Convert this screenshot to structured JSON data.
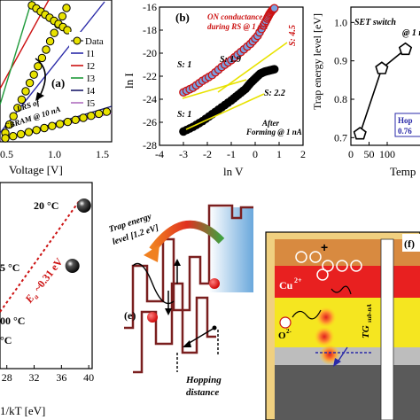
{
  "panel_a": {
    "label": "(a)",
    "xlabel": "Voltage [V]",
    "xticks": [
      "0.5",
      "1.0",
      "1.5"
    ],
    "legend": [
      "Data",
      "I1",
      "I2",
      "I3",
      "I4",
      "I5"
    ],
    "annotation": "LRS of CBRAM @ 10 nA",
    "annotation_lines": [
      "LRS of",
      "CBRAM @ 10 nA"
    ],
    "colors": {
      "data": "#e8e200",
      "I1": "#2a2aa8",
      "I2": "#cc1111",
      "I3": "#1f9a3a",
      "I4": "#1b1b6b",
      "I5": "#b06fc0"
    }
  },
  "panel_b": {
    "label": "(b)",
    "xlabel": "ln V",
    "ylabel": "ln I",
    "xticks": [
      "-4",
      "-3",
      "-2",
      "-1",
      "0",
      "1",
      "2"
    ],
    "yticks": [
      "-16",
      "-18",
      "-20",
      "-22",
      "-24",
      "-26",
      "-28"
    ],
    "on_annotation": [
      "ON conductance",
      "during RS @ 1 μA"
    ],
    "forming_annotation": [
      "After",
      "Forming @ 1 nA"
    ],
    "slopes": [
      "S: 1",
      "S: 1.9",
      "S: 4.5",
      "S: 2.2",
      "S: 1"
    ]
  },
  "panel_c": {
    "title": "SET switch",
    "title_suffix": "@ 1 n",
    "ylabel": "Trap energy level [eV]",
    "xlabel": "Temp",
    "yticks": [
      "1.0",
      "0.9",
      "0.8",
      "0.7"
    ],
    "xticks": [
      "0",
      "50",
      "100"
    ],
    "box_lines": [
      "Hop",
      "0.76"
    ]
  },
  "panel_d": {
    "xlabel": "1/kT [eV]",
    "xticks": [
      "28",
      "32",
      "36",
      "40"
    ],
    "temps": [
      "20 °C",
      "5 °C",
      "00 °C",
      "°C"
    ],
    "activation": "E",
    "activation_sub": "a",
    "activation_value": "~0.31 eV"
  },
  "panel_e": {
    "label": "(e)",
    "trap_label": [
      "Trap energy",
      "level [1.2 eV]"
    ],
    "hopping_label": [
      "Hopping",
      "distance"
    ]
  },
  "panel_f": {
    "label": "(f)",
    "plus": "+",
    "cu": "Cu",
    "cu_sup": "2+",
    "o": "O",
    "o_sup": "2-",
    "tg": "TG",
    "tg_sub": "sub-nA"
  },
  "chart_data": [
    {
      "type": "line",
      "panel": "b",
      "xlabel": "ln V",
      "ylabel": "ln I",
      "xlim": [
        -4,
        2
      ],
      "ylim": [
        -28,
        -16
      ],
      "series": [
        {
          "name": "ON conductance during RS @ 1 μA",
          "x": [
            -3.0,
            -2.6,
            -2.2,
            -1.8,
            -1.4,
            -1.0,
            -0.6,
            -0.2,
            0.1,
            0.35,
            0.5,
            0.6,
            0.7,
            0.8
          ],
          "y": [
            -23.4,
            -23.0,
            -22.4,
            -21.9,
            -21.2,
            -20.6,
            -19.9,
            -19.2,
            -18.5,
            -17.6,
            -17.0,
            -16.6,
            -16.3,
            -16.1
          ]
        },
        {
          "name": "After Forming @ 1 nA",
          "x": [
            -3.0,
            -2.6,
            -2.2,
            -1.8,
            -1.4,
            -1.0,
            -0.7,
            -0.4,
            -0.2,
            0.0,
            0.2,
            0.4,
            0.6,
            0.8
          ],
          "y": [
            -26.8,
            -26.4,
            -25.9,
            -25.3,
            -24.7,
            -24.1,
            -23.6,
            -23.1,
            -22.6,
            -22.2,
            -21.8,
            -21.6,
            -21.5,
            -21.4
          ]
        }
      ]
    },
    {
      "type": "line",
      "panel": "c",
      "ylabel": "Trap energy level [eV]",
      "ylim": [
        0.68,
        1.04
      ],
      "x": [
        25,
        85,
        150
      ],
      "y": [
        0.71,
        0.88,
        0.93
      ]
    },
    {
      "type": "scatter",
      "panel": "d",
      "xlabel": "1/kT [eV]",
      "xlim": [
        27,
        40.5
      ],
      "x": [
        39.3,
        37.6
      ],
      "y": [
        20,
        5
      ]
    }
  ]
}
